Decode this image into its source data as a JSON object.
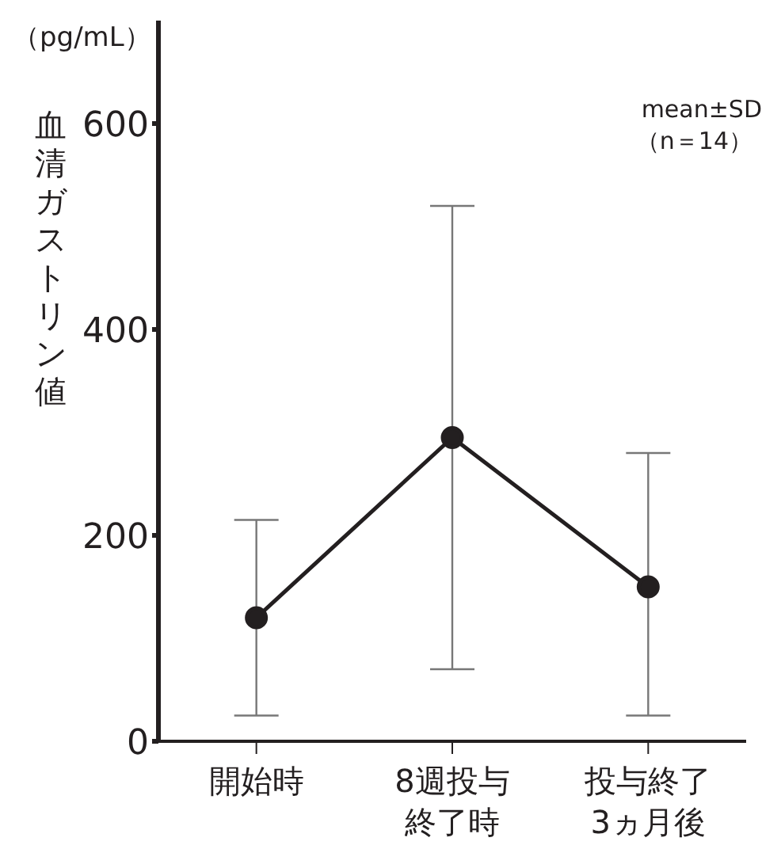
{
  "chart_data": {
    "type": "line",
    "ylabel": "血清ガストリン値",
    "categories": [
      "開始時",
      "8週投与終了時",
      "投与終了3ヵ月後"
    ],
    "series": [
      {
        "color": "#231f20",
        "values": [
          120,
          295,
          150
        ],
        "errors": [
          [
            25,
            215
          ],
          [
            70,
            520
          ],
          [
            25,
            280
          ]
        ]
      }
    ],
    "ylim": [
      0,
      700
    ],
    "yticks": [
      0,
      200,
      400,
      600
    ],
    "marker": "circle",
    "line_style": "solid",
    "grid": false,
    "legend": false,
    "annotations": [
      "（pg/mL）",
      "mean±SD",
      "（n＝14）"
    ]
  }
}
